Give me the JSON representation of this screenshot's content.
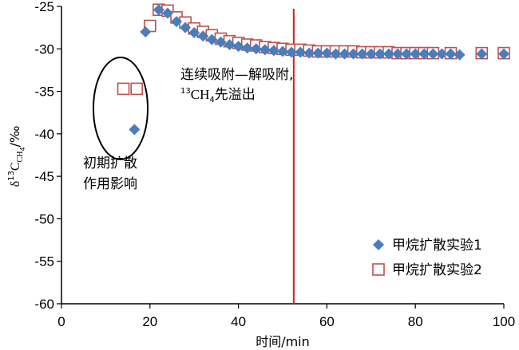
{
  "chart_data": {
    "type": "scatter",
    "xlabel": "时间/min",
    "ylabel": {
      "base": "δ",
      "sup": "13",
      "mid": "C",
      "sub": "CH",
      "sub2": "4",
      "tail": "/‰"
    },
    "xlim": [
      0,
      100
    ],
    "ylim": [
      -60,
      -25
    ],
    "xticks": [
      "0",
      "20",
      "40",
      "60",
      "80",
      "100"
    ],
    "yticks": [
      "-25",
      "-30",
      "-35",
      "-40",
      "-45",
      "-50",
      "-55",
      "-60"
    ],
    "grid": false,
    "legend_position": "bottom-right",
    "vline": {
      "x": 52.5,
      "color": "#e0161b"
    },
    "series": [
      {
        "name": "甲烷扩散实验1",
        "marker": "diamond",
        "color": "#4a7ebb",
        "x": [
          16.5,
          19,
          22,
          24,
          26,
          28,
          30,
          32,
          34,
          36,
          38,
          40,
          42,
          44,
          46,
          48,
          50,
          52,
          54,
          56,
          58,
          60,
          62,
          64,
          66,
          68,
          70,
          72,
          74,
          76,
          78,
          80,
          82,
          84,
          86,
          88,
          90,
          95,
          100
        ],
        "y": [
          -39.5,
          -28,
          -25.4,
          -25.8,
          -26.8,
          -27.5,
          -28.1,
          -28.5,
          -28.9,
          -29.2,
          -29.5,
          -29.7,
          -29.9,
          -30.0,
          -30.1,
          -30.2,
          -30.3,
          -30.4,
          -30.4,
          -30.5,
          -30.5,
          -30.5,
          -30.6,
          -30.6,
          -30.6,
          -30.6,
          -30.6,
          -30.6,
          -30.6,
          -30.6,
          -30.6,
          -30.6,
          -30.6,
          -30.6,
          -30.6,
          -30.6,
          -30.7,
          -30.6,
          -30.6
        ]
      },
      {
        "name": "甲烷扩散实验2",
        "marker": "square-open",
        "color": "#c0504d",
        "x": [
          14,
          17,
          20,
          22,
          24,
          26,
          28,
          30,
          32,
          34,
          36,
          38,
          40,
          42,
          44,
          46,
          48,
          50,
          52,
          54,
          56,
          58,
          60,
          62,
          64,
          66,
          68,
          70,
          72,
          74,
          76,
          78,
          80,
          82,
          84,
          88,
          95,
          100
        ],
        "y": [
          -34.7,
          -34.7,
          -27.3,
          -25.4,
          -25.5,
          -26.3,
          -26.9,
          -27.6,
          -28.0,
          -28.4,
          -28.8,
          -29.1,
          -29.3,
          -29.5,
          -29.6,
          -29.8,
          -29.9,
          -30.0,
          -30.1,
          -30.1,
          -30.2,
          -30.3,
          -30.3,
          -30.3,
          -30.3,
          -30.3,
          -30.4,
          -30.4,
          -30.4,
          -30.4,
          -30.5,
          -30.5,
          -30.5,
          -30.5,
          -30.5,
          -30.5,
          -30.5,
          -30.5
        ]
      }
    ],
    "annotations": {
      "diffusion_line1": "初期扩散",
      "diffusion_line2": "作用影响",
      "process_line1": "连续吸附—解吸附,",
      "process_sup": "13",
      "process_ch": "CH",
      "process_sub": "4",
      "process_tail": "先溢出"
    }
  }
}
